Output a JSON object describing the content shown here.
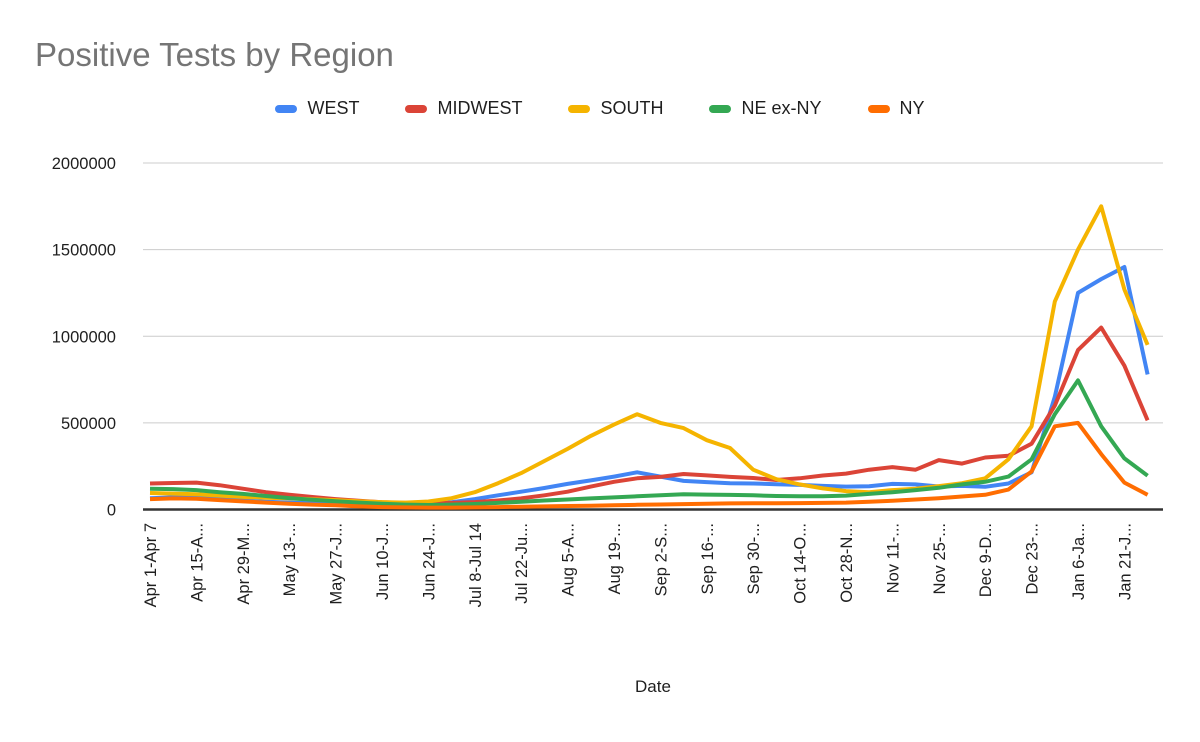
{
  "page": {
    "title": "Positive Tests by Region"
  },
  "chart_data": {
    "type": "line",
    "title": "Positive Tests by Region",
    "xlabel": "Date",
    "ylabel": "",
    "ylim": [
      0,
      2000000
    ],
    "grid": true,
    "legend_position": "top",
    "yticks": [
      {
        "value": 0,
        "label": "0"
      },
      {
        "value": 500000,
        "label": "500000"
      },
      {
        "value": 1000000,
        "label": "1000000"
      },
      {
        "value": 1500000,
        "label": "1500000"
      },
      {
        "value": 2000000,
        "label": "2000000"
      }
    ],
    "x_note": "weekly data points Apr 1 - Jan 28; axis labels shown on every second point",
    "x_tick_labels": [
      "Apr 1-Apr 7",
      "Apr 15-A...",
      "Apr 29-M...",
      "May 13-...",
      "May 27-J...",
      "Jun 10-J...",
      "Jun 24-J...",
      "Jul 8-Jul 14",
      "Jul 22-Ju...",
      "Aug 5-A...",
      "Aug 19-...",
      "Sep 2-S...",
      "Sep 16-...",
      "Sep 30-...",
      "Oct 14-O...",
      "Oct 28-N...",
      "Nov 11-...",
      "Nov 25-...",
      "Dec 9-D...",
      "Dec 23-...",
      "Jan 6-Ja...",
      "Jan 21-J..."
    ],
    "series": [
      {
        "name": "WEST",
        "color": "#4285F4",
        "values": [
          65000,
          70000,
          68000,
          60000,
          52000,
          45000,
          40000,
          36000,
          33000,
          30000,
          27000,
          26000,
          30000,
          42000,
          60000,
          82000,
          103000,
          124000,
          148000,
          168000,
          190000,
          215000,
          190000,
          165000,
          158000,
          152000,
          150000,
          146000,
          142000,
          136000,
          132000,
          134000,
          148000,
          145000,
          133000,
          136000,
          131000,
          150000,
          215000,
          650000,
          1250000,
          1330000,
          1400000,
          780000
        ]
      },
      {
        "name": "MIDWEST",
        "color": "#DB4437",
        "values": [
          150000,
          153000,
          155000,
          140000,
          120000,
          100000,
          85000,
          72000,
          60000,
          50000,
          42000,
          38000,
          36000,
          38000,
          43000,
          52000,
          64000,
          82000,
          103000,
          132000,
          160000,
          180000,
          188000,
          205000,
          197000,
          188000,
          182000,
          170000,
          180000,
          196000,
          207000,
          230000,
          245000,
          230000,
          285000,
          265000,
          300000,
          310000,
          380000,
          600000,
          920000,
          1050000,
          830000,
          515000
        ]
      },
      {
        "name": "SOUTH",
        "color": "#F5B400",
        "values": [
          95000,
          92000,
          88000,
          80000,
          73000,
          68000,
          64000,
          59000,
          54000,
          48000,
          43000,
          40000,
          46000,
          65000,
          100000,
          152000,
          210000,
          280000,
          350000,
          425000,
          490000,
          550000,
          500000,
          470000,
          400000,
          355000,
          230000,
          175000,
          145000,
          122000,
          106000,
          100000,
          112000,
          120000,
          135000,
          152000,
          180000,
          290000,
          480000,
          1200000,
          1500000,
          1750000,
          1270000,
          950000
        ]
      },
      {
        "name": "NE ex-NY",
        "color": "#34A853",
        "values": [
          120000,
          118000,
          112000,
          100000,
          90000,
          78000,
          66000,
          56000,
          48000,
          40000,
          33000,
          28000,
          26000,
          28000,
          32000,
          38000,
          45000,
          52000,
          58000,
          64000,
          70000,
          76000,
          82000,
          88000,
          86000,
          84000,
          82000,
          78000,
          76000,
          76000,
          80000,
          90000,
          100000,
          112000,
          125000,
          145000,
          160000,
          190000,
          290000,
          550000,
          745000,
          480000,
          295000,
          195000
        ]
      },
      {
        "name": "NY",
        "color": "#FF6D01",
        "values": [
          60000,
          64000,
          62000,
          54000,
          47000,
          40000,
          33000,
          28000,
          24000,
          18000,
          14000,
          12000,
          11000,
          11000,
          12000,
          14000,
          16000,
          18000,
          20000,
          22000,
          25000,
          27000,
          29000,
          31000,
          33000,
          35000,
          36000,
          36000,
          37000,
          38000,
          40000,
          45000,
          50000,
          58000,
          65000,
          75000,
          85000,
          115000,
          220000,
          480000,
          500000,
          320000,
          155000,
          85000
        ]
      }
    ]
  }
}
